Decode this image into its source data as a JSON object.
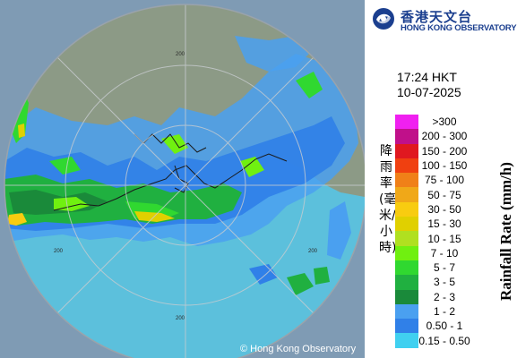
{
  "map": {
    "copyright": "© Hong Kong Observatory",
    "range_labels": [
      "200",
      "200",
      "200",
      "200"
    ],
    "palette": {
      "sea": "#5cc0dc",
      "land": "#8c9a86",
      "outside": "#7f9bb4",
      "ring": "#bcc3c8"
    }
  },
  "branding": {
    "name_cn": "香港天文台",
    "name_en": "HONG KONG OBSERVATORY",
    "logo_icon": "hko-logo-icon",
    "color": "#1b3f8f"
  },
  "timestamp": {
    "time": "17:24 HKT",
    "date": "10-07-2025"
  },
  "legend": {
    "title_cn": "降雨率(毫米/小時)",
    "title_en": "Rainfall Rate (mm/h)",
    "items": [
      {
        "label": ">300",
        "color": "#f020f0"
      },
      {
        "label": "200 - 300",
        "color": "#c0108a"
      },
      {
        "label": "150 - 200",
        "color": "#e01820"
      },
      {
        "label": "100 - 150",
        "color": "#f04010"
      },
      {
        "label": "75 - 100",
        "color": "#f08018"
      },
      {
        "label": "50 - 75",
        "color": "#f0a818"
      },
      {
        "label": "30 - 50",
        "color": "#f8cc10"
      },
      {
        "label": "15 - 30",
        "color": "#e0d000"
      },
      {
        "label": "10 - 15",
        "color": "#b0e020"
      },
      {
        "label": "7 - 10",
        "color": "#70f010"
      },
      {
        "label": "5 - 7",
        "color": "#30d830"
      },
      {
        "label": "3 - 5",
        "color": "#20b040"
      },
      {
        "label": "2 - 3",
        "color": "#1a8a3a"
      },
      {
        "label": "1 - 2",
        "color": "#4aa0f0"
      },
      {
        "label": "0.50 - 1",
        "color": "#3080e8"
      },
      {
        "label": "0.15 - 0.50",
        "color": "#40d0f0"
      }
    ]
  }
}
